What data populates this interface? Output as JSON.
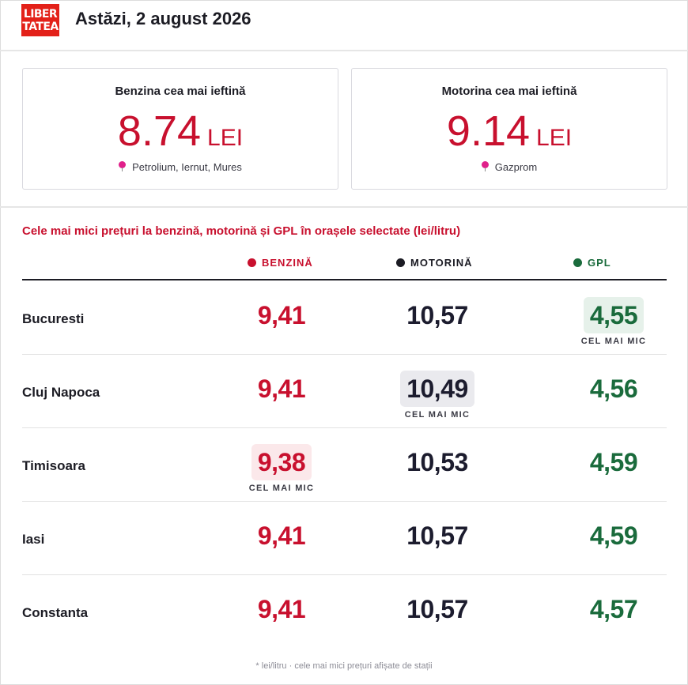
{
  "header": {
    "logo_line1": "LIBER",
    "logo_line2": "TATEA",
    "date": "Astăzi, 2 august 2026"
  },
  "cards": [
    {
      "label": "Benzina cea mai ieftină",
      "price": "8.74",
      "unit": "LEI",
      "location": "Petrolium, Iernut, Mures",
      "icon": "map-pin-icon"
    },
    {
      "label": "Motorina cea mai ieftină",
      "price": "9.14",
      "unit": "LEI",
      "location": "Gazprom",
      "icon": "map-pin-icon"
    }
  ],
  "table": {
    "title": "Cele mai mici prețuri la benzină, motorină și GPL în orașele selectate (lei/litru)",
    "columns": [
      {
        "label": "BENZINĂ",
        "color": "#c8102e"
      },
      {
        "label": "MOTORINĂ",
        "color": "#1c1c24"
      },
      {
        "label": "GPL",
        "color": "#1a6b3c"
      }
    ],
    "lowest_label": "CEL MAI MIC",
    "rows": [
      {
        "city": "Bucuresti",
        "benzina": "9,41",
        "motorina": "10,57",
        "gpl": "4,55"
      },
      {
        "city": "Cluj Napoca",
        "benzina": "9,41",
        "motorina": "10,49",
        "gpl": "4,56"
      },
      {
        "city": "Timisoara",
        "benzina": "9,38",
        "motorina": "10,53",
        "gpl": "4,59"
      },
      {
        "city": "Iasi",
        "benzina": "9,41",
        "motorina": "10,57",
        "gpl": "4,59"
      },
      {
        "city": "Constanta",
        "benzina": "9,41",
        "motorina": "10,57",
        "gpl": "4,57"
      }
    ],
    "lowest": {
      "benzina": "Timisoara",
      "motorina": "Cluj Napoca",
      "gpl": "Bucuresti"
    }
  },
  "footnote": "* lei/litru · cele mai mici prețuri afișate de stații",
  "colors": {
    "accent_red": "#c8102e",
    "dark": "#1c1c24",
    "green": "#1a6b3c",
    "brand": "#e32119",
    "pin": "#e0208a"
  }
}
